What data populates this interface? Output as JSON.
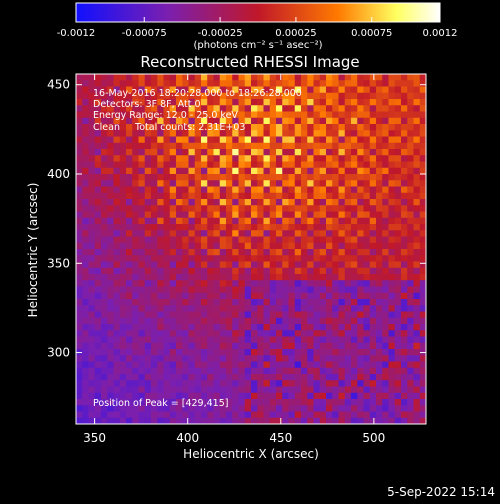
{
  "chart_data": {
    "type": "heatmap",
    "title": "Reconstructed RHESSI Image",
    "xlabel": "Heliocentric X (arcsec)",
    "ylabel": "Heliocentric Y (arcsec)",
    "xlim": [
      340,
      528
    ],
    "ylim": [
      260,
      456
    ],
    "x_ticks": [
      350,
      400,
      450,
      500
    ],
    "y_ticks": [
      300,
      350,
      400,
      450
    ],
    "grid": false,
    "colorbar": {
      "range": [
        -0.0012,
        0.0012
      ],
      "tick_labels": [
        "-0.0012",
        "-0.00075",
        "-0.00025",
        "0.00025",
        "0.00075",
        "0.0012"
      ],
      "tick_values": [
        -0.0012,
        -0.00075,
        -0.00025,
        0.00025,
        0.00075,
        0.0012
      ],
      "label": "(photons cm⁻² s⁻¹ asec⁻²)",
      "colors": [
        "#1010ff",
        "#7a1fb0",
        "#c0182a",
        "#ff7a00",
        "#ffff60",
        "#ffffff"
      ]
    },
    "annotations": [
      "16-May-2016 18:20:28.000 to 18:26:28.000",
      "Detectors: 3F 8F, Att 0",
      "Energy Range: 12.0 - 25.0 keV",
      "Clean     Total counts: 2.31E+03",
      "Position of Peak = [429,415]"
    ],
    "peak": [
      429,
      415
    ]
  },
  "footer": {
    "date": "5-Sep-2022 15:14"
  }
}
